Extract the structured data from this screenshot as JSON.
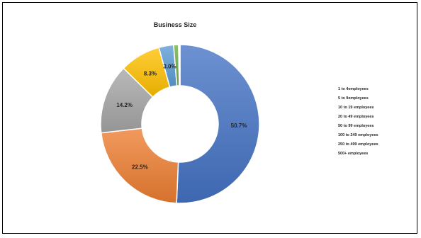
{
  "chart_data": {
    "type": "pie",
    "style": "doughnut",
    "title": "Business Size",
    "categories": [
      "1 to 4employees",
      "5 to 9employees",
      "10 to 19 employees",
      "20 to 49 employees",
      "50 to 99 employees",
      "100 to 249 employees",
      "250 to 499 employees",
      "500+ employees"
    ],
    "values": [
      50.7,
      22.5,
      14.2,
      8.3,
      3.0,
      1.0,
      0.2,
      0.1
    ],
    "labels": [
      "50.7%",
      "22.5%",
      "14.2%",
      "8.3%",
      "3.0%",
      "",
      "",
      ""
    ],
    "colors": [
      "#4472c4",
      "#ed7d31",
      "#a5a5a5",
      "#ffc000",
      "#5b9bd5",
      "#70ad47",
      "#264478",
      "#9e480e"
    ],
    "legend_position": "right"
  }
}
